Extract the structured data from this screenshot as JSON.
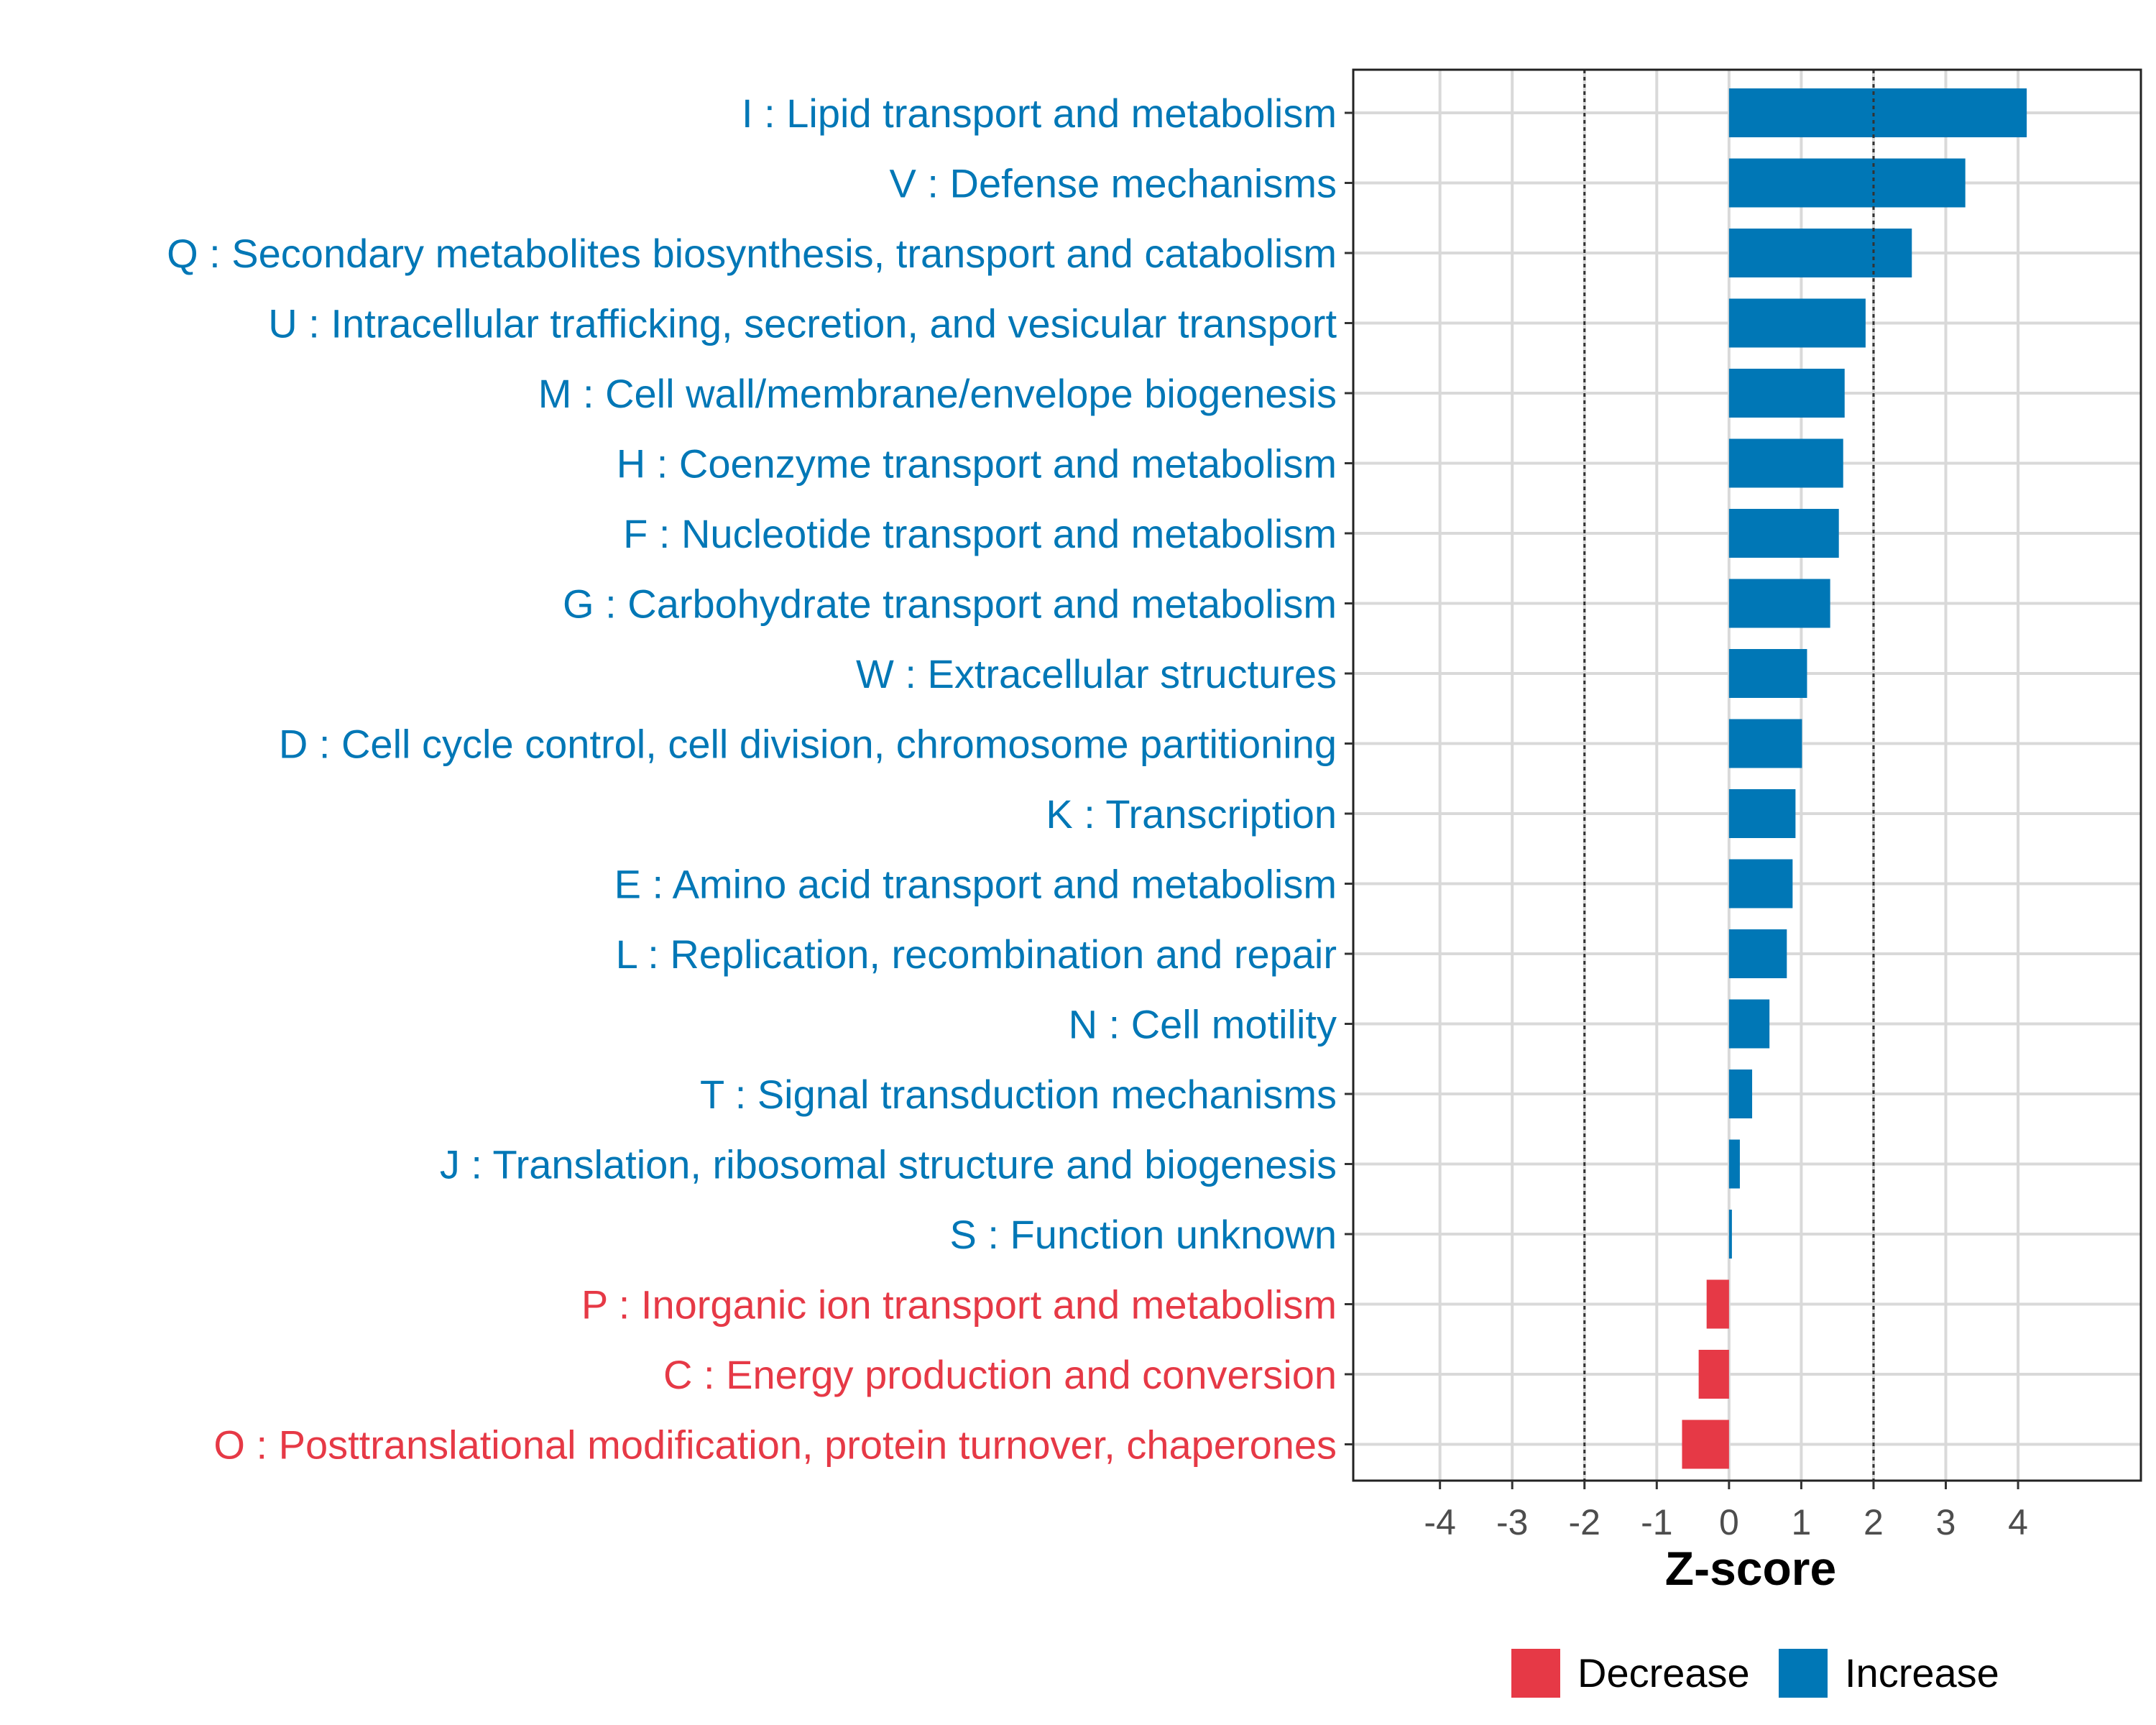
{
  "chart_data": {
    "type": "bar",
    "orientation": "horizontal",
    "xlabel": "Z-score",
    "ylabel": "",
    "xlim": [
      -5.2,
      5.7
    ],
    "xticks": [
      -4,
      -3,
      -2,
      -1,
      0,
      1,
      2,
      3,
      4
    ],
    "xtick_labels": [
      "-4",
      "-3",
      "-2",
      "-1",
      "0",
      "1",
      "2",
      "3",
      "4"
    ],
    "threshold_lines": [
      -2,
      2
    ],
    "grid": true,
    "legend": {
      "placement": "bottom",
      "entries": [
        {
          "label": "Decrease",
          "color": "#E63946"
        },
        {
          "label": "Increase",
          "color": "#0077B6"
        }
      ]
    },
    "colors": {
      "Decrease": "#E63946",
      "Increase": "#0077B6"
    },
    "bars": [
      {
        "label": "I : Lipid transport and metabolism",
        "value": 4.12,
        "direction": "Increase"
      },
      {
        "label": "V : Defense mechanisms",
        "value": 3.27,
        "direction": "Increase"
      },
      {
        "label": "Q : Secondary metabolites biosynthesis, transport and catabolism",
        "value": 2.53,
        "direction": "Increase"
      },
      {
        "label": "U : Intracellular trafficking, secretion, and vesicular transport",
        "value": 1.89,
        "direction": "Increase"
      },
      {
        "label": "M : Cell wall/membrane/envelope biogenesis",
        "value": 1.6,
        "direction": "Increase"
      },
      {
        "label": "H : Coenzyme transport and metabolism",
        "value": 1.58,
        "direction": "Increase"
      },
      {
        "label": "F : Nucleotide transport and metabolism",
        "value": 1.52,
        "direction": "Increase"
      },
      {
        "label": "G : Carbohydrate transport and metabolism",
        "value": 1.4,
        "direction": "Increase"
      },
      {
        "label": "W : Extracellular structures",
        "value": 1.08,
        "direction": "Increase"
      },
      {
        "label": "D : Cell cycle control, cell division, chromosome partitioning",
        "value": 1.01,
        "direction": "Increase"
      },
      {
        "label": "K : Transcription",
        "value": 0.92,
        "direction": "Increase"
      },
      {
        "label": "E : Amino acid transport and metabolism",
        "value": 0.88,
        "direction": "Increase"
      },
      {
        "label": "L : Replication, recombination and repair",
        "value": 0.8,
        "direction": "Increase"
      },
      {
        "label": "N : Cell motility",
        "value": 0.56,
        "direction": "Increase"
      },
      {
        "label": "T : Signal transduction mechanisms",
        "value": 0.32,
        "direction": "Increase"
      },
      {
        "label": "J : Translation, ribosomal structure and biogenesis",
        "value": 0.15,
        "direction": "Increase"
      },
      {
        "label": "S : Function unknown",
        "value": 0.04,
        "direction": "Increase"
      },
      {
        "label": "P : Inorganic ion transport and metabolism",
        "value": -0.31,
        "direction": "Decrease"
      },
      {
        "label": "C : Energy production and conversion",
        "value": -0.42,
        "direction": "Decrease"
      },
      {
        "label": "O : Posttranslational modification, protein turnover, chaperones",
        "value": -0.65,
        "direction": "Decrease"
      }
    ]
  }
}
